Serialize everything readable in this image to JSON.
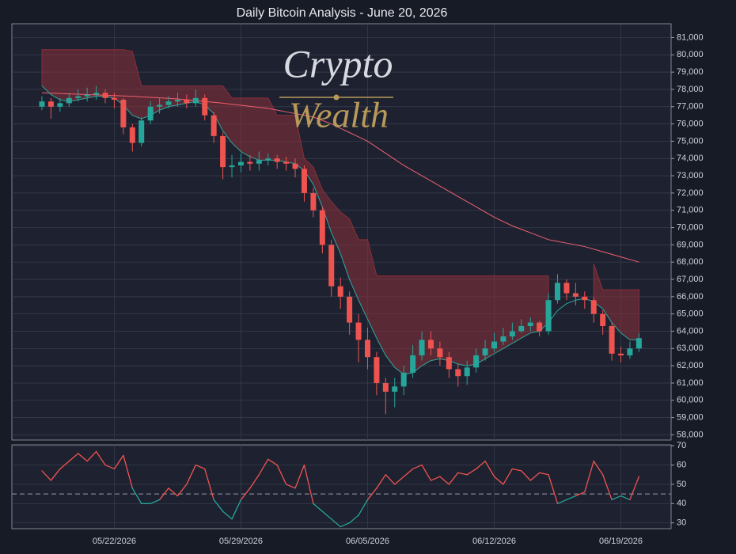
{
  "chart_data": {
    "type": "candlestick",
    "title": "Daily Bitcoin Analysis - June 20, 2026",
    "watermark": [
      "Crypto",
      "Wealth"
    ],
    "categories": [
      null,
      null,
      null,
      null,
      null,
      null,
      null,
      null,
      "05/22/2026",
      null,
      null,
      null,
      null,
      null,
      null,
      null,
      null,
      null,
      null,
      null,
      null,
      null,
      "05/29/2026",
      null,
      null,
      null,
      null,
      null,
      null,
      null,
      null,
      null,
      null,
      null,
      null,
      null,
      "06/05/2026",
      null,
      null,
      null,
      null,
      null,
      null,
      null,
      null,
      null,
      null,
      null,
      null,
      null,
      "06/12/2026",
      null,
      null,
      null,
      null,
      null,
      null,
      null,
      null,
      null,
      null,
      null,
      null,
      null,
      "06/19/2026",
      null,
      null
    ],
    "open": [
      77000,
      77300,
      77000,
      77200,
      77500,
      77600,
      77700,
      77800,
      77500,
      77400,
      75800,
      74900,
      76200,
      77000,
      77100,
      77300,
      77400,
      77200,
      77500,
      76500,
      75300,
      73500,
      73600,
      73800,
      73700,
      73900,
      74000,
      73800,
      73700,
      73400,
      72000,
      71000,
      69000,
      66600,
      66000,
      64500,
      63500,
      62500,
      61000,
      60500,
      60800,
      61600,
      62600,
      63500,
      63000,
      62500,
      61800,
      61400,
      61900,
      62600,
      63000,
      63400,
      63700,
      64000,
      64300,
      64500,
      64000,
      65800,
      66800,
      66200,
      66000,
      65800,
      65000,
      64300,
      62700,
      62600,
      63000
    ],
    "high": [
      77600,
      77500,
      77500,
      77800,
      78000,
      78100,
      78200,
      78000,
      77800,
      77500,
      76000,
      76400,
      77300,
      77500,
      77600,
      77800,
      77700,
      78000,
      77700,
      76700,
      75500,
      74200,
      74300,
      74200,
      74400,
      74300,
      74200,
      74100,
      74000,
      73600,
      72300,
      71200,
      69300,
      67100,
      66300,
      65000,
      64200,
      62800,
      61300,
      61300,
      62000,
      63200,
      64000,
      64000,
      63400,
      62800,
      62100,
      62300,
      63000,
      63500,
      63900,
      64200,
      64500,
      64700,
      64800,
      64600,
      66200,
      67300,
      67000,
      66800,
      66300,
      66000,
      65200,
      64500,
      63100,
      63400,
      63900
    ],
    "low": [
      76800,
      76300,
      76700,
      77000,
      77300,
      77300,
      77400,
      77200,
      76900,
      75400,
      74400,
      74700,
      76000,
      76600,
      76900,
      77000,
      76900,
      77000,
      76200,
      74900,
      72800,
      72900,
      73200,
      73300,
      73300,
      73600,
      73400,
      73300,
      72900,
      71500,
      70600,
      68500,
      66000,
      65300,
      63800,
      62200,
      61800,
      60300,
      59200,
      59600,
      60300,
      61300,
      62300,
      62600,
      62000,
      61300,
      60800,
      60900,
      61600,
      62300,
      62800,
      63200,
      63500,
      63900,
      64000,
      63700,
      63800,
      65600,
      65800,
      65500,
      65300,
      64500,
      63800,
      62300,
      62200,
      62400,
      62800
    ],
    "close": [
      77300,
      77000,
      77200,
      77500,
      77600,
      77700,
      77800,
      77500,
      77400,
      75800,
      74900,
      76200,
      77000,
      77100,
      77300,
      77400,
      77200,
      77500,
      76500,
      75300,
      73500,
      73600,
      73800,
      73700,
      73900,
      74000,
      73800,
      73700,
      73400,
      72000,
      71000,
      69000,
      66600,
      66000,
      64500,
      63500,
      62500,
      61000,
      60500,
      60800,
      61600,
      62600,
      63500,
      63000,
      62500,
      61800,
      61400,
      61900,
      62600,
      63000,
      63400,
      63700,
      64000,
      64300,
      64500,
      64000,
      65800,
      66800,
      66200,
      66000,
      65800,
      65000,
      64300,
      62700,
      62600,
      63000,
      63600
    ],
    "up_color": "#26a69a",
    "down_color": "#ef5350",
    "ma_fast": {
      "color": "#26a69a",
      "values": [
        78200,
        77700,
        77400,
        77300,
        77400,
        77500,
        77600,
        77600,
        77500,
        77100,
        76500,
        76300,
        76500,
        76800,
        77000,
        77100,
        77200,
        77300,
        77100,
        76600,
        75600,
        74900,
        74400,
        74100,
        73900,
        73900,
        73900,
        73800,
        73700,
        73300,
        72500,
        71200,
        69700,
        68500,
        67000,
        65800,
        64700,
        63600,
        62600,
        61900,
        61500,
        61600,
        62000,
        62300,
        62400,
        62300,
        62100,
        62000,
        62100,
        62400,
        62700,
        63000,
        63300,
        63600,
        63900,
        64000,
        64500,
        65200,
        65600,
        65800,
        65900,
        65700,
        65300,
        64500,
        63900,
        63500,
        63500
      ]
    },
    "ma_slow": {
      "color": "#f06070",
      "values": [
        77800,
        77780,
        77760,
        77740,
        77720,
        77700,
        77680,
        77660,
        77640,
        77620,
        77600,
        77570,
        77540,
        77510,
        77480,
        77450,
        77400,
        77350,
        77300,
        77250,
        77200,
        77140,
        77080,
        77020,
        76960,
        76900,
        76800,
        76700,
        76600,
        76500,
        76400,
        76200,
        76000,
        75750,
        75500,
        75250,
        75000,
        74650,
        74300,
        73950,
        73600,
        73300,
        73000,
        72700,
        72400,
        72100,
        71800,
        71500,
        71200,
        70900,
        70600,
        70350,
        70100,
        69900,
        69700,
        69500,
        69300,
        69200,
        69100,
        69000,
        68900,
        68750,
        68600,
        68450,
        68300,
        68150,
        68000
      ]
    },
    "band": {
      "color": "#8b2f3a",
      "upper": [
        80300,
        80300,
        80300,
        80300,
        80300,
        80300,
        80300,
        80300,
        80300,
        80300,
        80200,
        78200,
        78200,
        78200,
        78200,
        78200,
        78200,
        78200,
        78200,
        78200,
        78200,
        77500,
        77500,
        77500,
        77500,
        77500,
        76500,
        76500,
        76500,
        74000,
        73500,
        72200,
        71500,
        70900,
        70500,
        69300,
        69300,
        67200,
        67200,
        67200,
        67200,
        67200,
        67200,
        67200,
        67200,
        67200,
        67200,
        67200,
        67200,
        67200,
        67200,
        67200,
        67200,
        67200,
        67200,
        67200,
        67200,
        null,
        null,
        null,
        null,
        67900,
        66400,
        66400,
        66400,
        66400,
        66400
      ],
      "lower": [
        78200,
        77700,
        77400,
        77300,
        77400,
        77500,
        77600,
        77600,
        77500,
        77100,
        76500,
        76300,
        76500,
        76800,
        77000,
        77100,
        77200,
        77300,
        77100,
        76600,
        75600,
        74900,
        74400,
        74100,
        73900,
        73900,
        73900,
        73800,
        73700,
        73300,
        72500,
        71200,
        69700,
        68500,
        67000,
        65800,
        64700,
        63600,
        62600,
        61900,
        61500,
        61600,
        62000,
        62300,
        62400,
        62300,
        62100,
        62000,
        62100,
        62400,
        62700,
        63000,
        63300,
        63600,
        63900,
        64000,
        64500,
        null,
        null,
        null,
        null,
        65700,
        65300,
        64500,
        63900,
        63500,
        63500
      ]
    },
    "ylim": [
      57700,
      81800
    ],
    "yticks": [
      {
        "value": 58000,
        "label": "58,000"
      },
      {
        "value": 59000,
        "label": "59,000"
      },
      {
        "value": 60000,
        "label": "60,000"
      },
      {
        "value": 61000,
        "label": "61,000"
      },
      {
        "value": 62000,
        "label": "62,000"
      },
      {
        "value": 63000,
        "label": "63,000"
      },
      {
        "value": 64000,
        "label": "64,000"
      },
      {
        "value": 65000,
        "label": "65,000"
      },
      {
        "value": 66000,
        "label": "66,000"
      },
      {
        "value": 67000,
        "label": "67,000"
      },
      {
        "value": 68000,
        "label": "68,000"
      },
      {
        "value": 69000,
        "label": "69,000"
      },
      {
        "value": 70000,
        "label": "70,000"
      },
      {
        "value": 71000,
        "label": "71,000"
      },
      {
        "value": 72000,
        "label": "72,000"
      },
      {
        "value": 73000,
        "label": "73,000"
      },
      {
        "value": 74000,
        "label": "74,000"
      },
      {
        "value": 75000,
        "label": "75,000"
      },
      {
        "value": 76000,
        "label": "76,000"
      },
      {
        "value": 77000,
        "label": "77,000"
      },
      {
        "value": 78000,
        "label": "78,000"
      },
      {
        "value": 79000,
        "label": "79,000"
      },
      {
        "value": 80000,
        "label": "80,000"
      },
      {
        "value": 81000,
        "label": "81,000"
      }
    ],
    "grid": true,
    "rsi": {
      "ylim": [
        27,
        70.5
      ],
      "yticks": [
        30,
        40,
        50,
        60,
        70
      ],
      "threshold": 45,
      "color_above": "#ef5350",
      "color_below": "#26a69a",
      "values": [
        57,
        52,
        58,
        62,
        66,
        62,
        67,
        60,
        58,
        65,
        48,
        40,
        40,
        42,
        48,
        44,
        50,
        60,
        58,
        42,
        36,
        32,
        42,
        48,
        55,
        63,
        60,
        50,
        48,
        60,
        40,
        36,
        32,
        28,
        30,
        34,
        42,
        48,
        55,
        50,
        54,
        58,
        60,
        52,
        54,
        50,
        56,
        55,
        58,
        62,
        54,
        50,
        58,
        57,
        52,
        56,
        55,
        40,
        42,
        44,
        46,
        62,
        55,
        42,
        44,
        42,
        54
      ]
    }
  }
}
